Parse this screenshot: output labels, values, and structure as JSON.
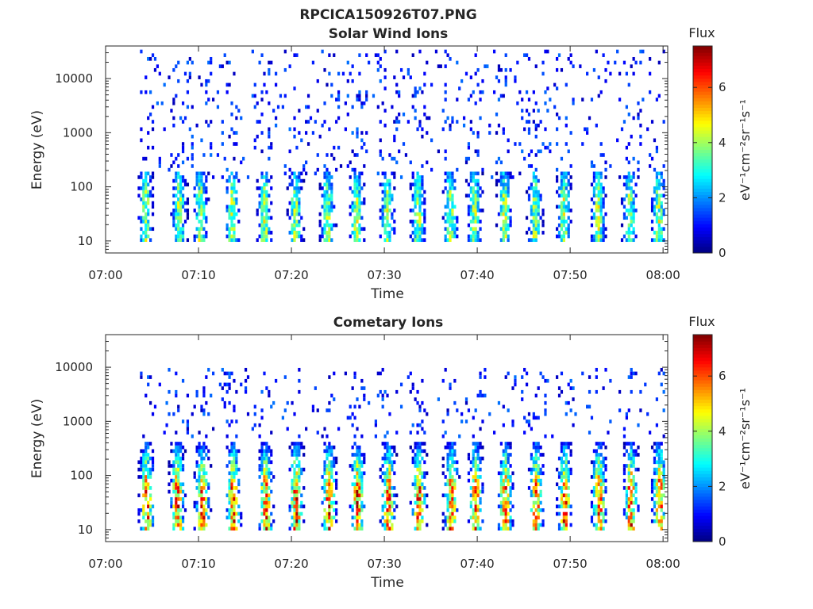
{
  "figure": {
    "title": "RPCICA150926T07.PNG"
  },
  "colorscale": [
    "#00007f",
    "#0000ff",
    "#007fff",
    "#00ffff",
    "#7fff7f",
    "#ffff00",
    "#ff7f00",
    "#ff0000",
    "#7f0000"
  ],
  "chart_data": [
    {
      "type": "heatmap",
      "title": "Solar Wind Ions",
      "xlabel": "Time",
      "ylabel": "Energy (eV)",
      "xticks": [
        "07:00",
        "07:10",
        "07:20",
        "07:30",
        "07:40",
        "07:50",
        "08:00"
      ],
      "xlim_minutes": [
        0,
        60.5
      ],
      "yscale": "log",
      "ylim": [
        6,
        40000
      ],
      "yticks": [
        "10",
        "100",
        "1000",
        "10000"
      ],
      "ytick_values": [
        10,
        100,
        1000,
        10000
      ],
      "colorbar": {
        "title": "Flux",
        "label": "eV⁻¹cm⁻²sr⁻¹s⁻¹",
        "ticks": [
          "0",
          "2",
          "4",
          "6"
        ],
        "tick_values": [
          0,
          2,
          4,
          6
        ],
        "range": [
          0,
          7.5
        ]
      },
      "bursts_minutes": [
        4.2,
        7.8,
        10.1,
        13.5,
        17.0,
        20.3,
        23.8,
        26.9,
        30.2,
        33.5,
        37.0,
        39.6,
        42.8,
        46.1,
        49.2,
        52.9,
        56.3,
        59.4
      ],
      "band_energy_eV": [
        10,
        200
      ],
      "peak_flux": 4.5,
      "sparse_energy_eV": [
        150,
        35000
      ],
      "sparse_flux": 1.0
    },
    {
      "type": "heatmap",
      "title": "Cometary Ions",
      "xlabel": "Time",
      "ylabel": "Energy (eV)",
      "xticks": [
        "07:00",
        "07:10",
        "07:20",
        "07:30",
        "07:40",
        "07:50",
        "08:00"
      ],
      "xlim_minutes": [
        0,
        60.5
      ],
      "yscale": "log",
      "ylim": [
        6,
        40000
      ],
      "yticks": [
        "10",
        "100",
        "1000",
        "10000"
      ],
      "ytick_values": [
        10,
        100,
        1000,
        10000
      ],
      "colorbar": {
        "title": "Flux",
        "label": "eV⁻¹cm⁻²sr⁻¹s⁻¹",
        "ticks": [
          "0",
          "2",
          "4",
          "6"
        ],
        "tick_values": [
          0,
          2,
          4,
          6
        ],
        "range": [
          0,
          7.5
        ]
      },
      "bursts_minutes": [
        4.3,
        7.6,
        10.3,
        13.6,
        17.1,
        20.4,
        23.9,
        27.0,
        30.3,
        33.6,
        37.1,
        39.7,
        42.9,
        46.2,
        49.3,
        53.0,
        56.4,
        59.5
      ],
      "band_energy_eV": [
        10,
        400
      ],
      "peak_flux": 6.5,
      "sparse_energy_eV": [
        500,
        10000
      ],
      "sparse_flux": 1.0
    }
  ]
}
